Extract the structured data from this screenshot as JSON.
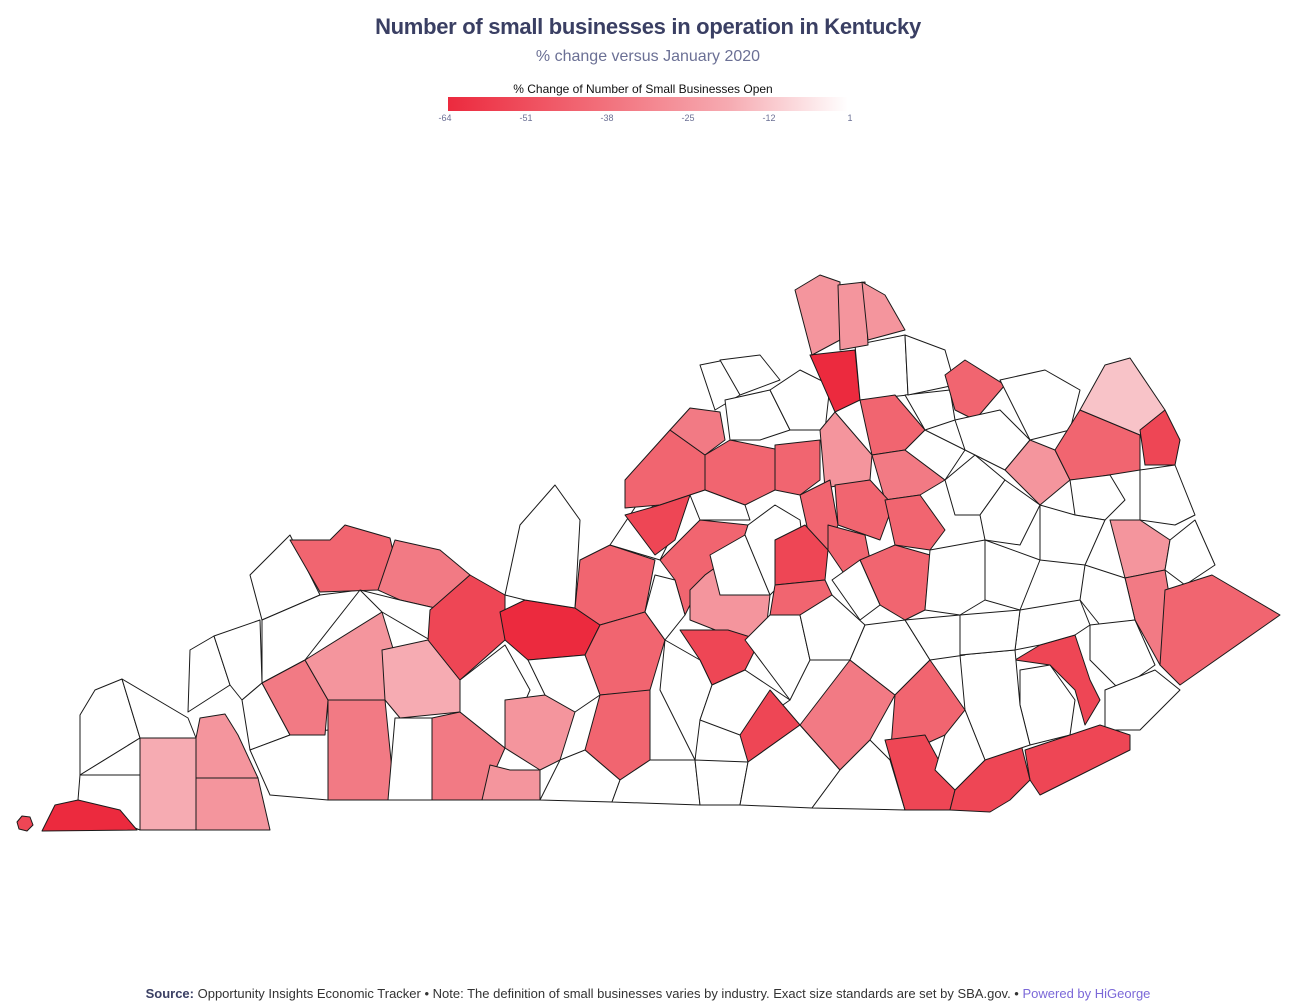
{
  "title": "Number of small businesses in operation in Kentucky",
  "subtitle": "% change versus January 2020",
  "legend": {
    "title": "% Change of Number of Small Businesses Open",
    "ticks": [
      "-64",
      "-51",
      "-38",
      "-25",
      "-12",
      "1"
    ],
    "min": -64,
    "max": 1,
    "colors": {
      "low": "#ec2a3e",
      "high": "#ffffff"
    }
  },
  "footer": {
    "source_label": "Source:",
    "source_text": "Opportunity Insights Economic Tracker • Note: The definition of small businesses varies by industry. Exact size standards are set by SBA.gov. •",
    "powered": "Powered by HiGeorge"
  },
  "chart_data": {
    "type": "choropleth",
    "region": "Kentucky counties",
    "value_label": "% Change of Number of Small Businesses Open",
    "colors": {
      "darkest": "#ec2a3e",
      "dark": "#ee4655",
      "medium_dark": "#f16570",
      "medium": "#f27a84",
      "light": "#f4959d",
      "lighter": "#f6abb2",
      "lightest": "#f8c3c8",
      "none": "#ffffff",
      "border": "#1a1a1a"
    }
  }
}
